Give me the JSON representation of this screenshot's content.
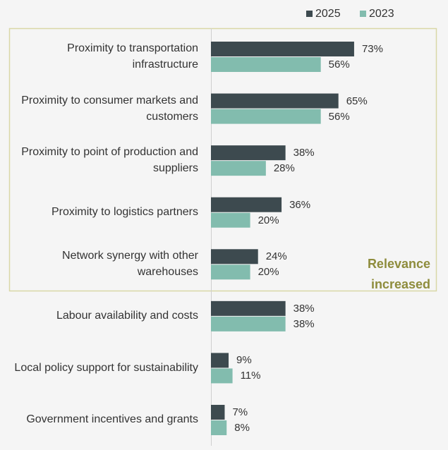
{
  "chart_data": {
    "type": "bar",
    "orientation": "horizontal",
    "categories": [
      "Proximity to transportation infrastructure",
      "Proximity to consumer markets and customers",
      "Proximity to point of production and suppliers",
      "Proximity to logistics partners",
      "Network synergy with other warehouses",
      "Labour availability and costs",
      "Local policy support for sustainability",
      "Government incentives and grants"
    ],
    "series": [
      {
        "name": "2025",
        "color": "#3d4a4f",
        "values": [
          73,
          65,
          38,
          36,
          24,
          38,
          9,
          7
        ],
        "value_labels": [
          "73%",
          "65%",
          "38%",
          "36%",
          "24%",
          "38%",
          "9%",
          "7%"
        ]
      },
      {
        "name": "2023",
        "color": "#82bcae",
        "values": [
          56,
          56,
          28,
          20,
          20,
          38,
          11,
          8
        ],
        "value_labels": [
          "56%",
          "56%",
          "28%",
          "20%",
          "20%",
          "38%",
          "11%",
          "8%"
        ]
      }
    ],
    "annotation": "Relevance increased"
  }
}
